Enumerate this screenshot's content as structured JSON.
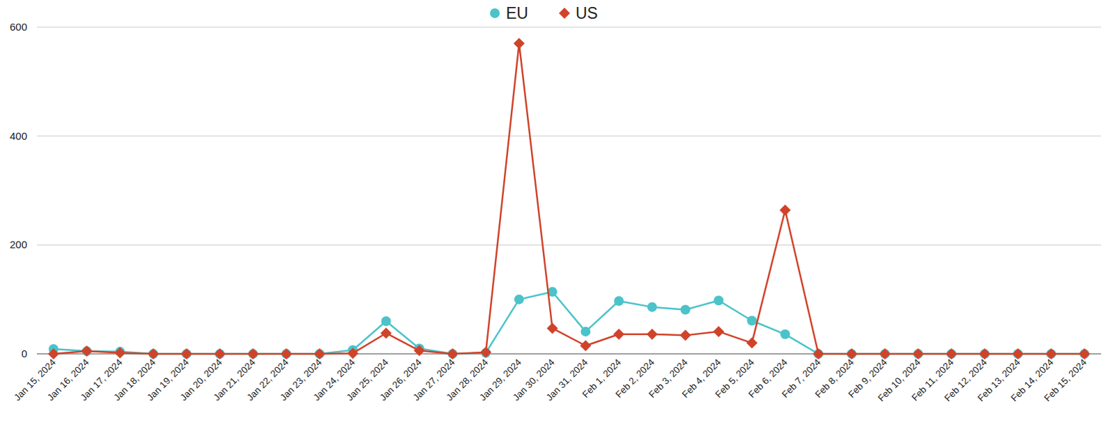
{
  "chart_data": {
    "type": "line",
    "categories": [
      "Jan 15, 2024",
      "Jan 16, 2024",
      "Jan 17, 2024",
      "Jan 18, 2024",
      "Jan 19, 2024",
      "Jan 20, 2024",
      "Jan 21, 2024",
      "Jan 22, 2024",
      "Jan 23, 2024",
      "Jan 24, 2024",
      "Jan 25, 2024",
      "Jan 26, 2024",
      "Jan 27, 2024",
      "Jan 28, 2024",
      "Jan 29, 2024",
      "Jan 30, 2024",
      "Jan 31, 2024",
      "Feb 1, 2024",
      "Feb 2, 2024",
      "Feb 3, 2024",
      "Feb 4, 2024",
      "Feb 5, 2024",
      "Feb 6, 2024",
      "Feb 7, 2024",
      "Feb 8, 2024",
      "Feb 9, 2024",
      "Feb 10, 2024",
      "Feb 11, 2024",
      "Feb 12, 2024",
      "Feb 13, 2024",
      "Feb 14, 2024",
      "Feb 15, 2024"
    ],
    "series": [
      {
        "name": "EU",
        "color": "#4bc3c9",
        "marker": "circle",
        "values": [
          9,
          5,
          4,
          0,
          0,
          0,
          0,
          0,
          0,
          7,
          60,
          10,
          0,
          2,
          100,
          114,
          41,
          97,
          86,
          81,
          98,
          61,
          36,
          0,
          0,
          0,
          0,
          0,
          0,
          0,
          0,
          0
        ]
      },
      {
        "name": "US",
        "color": "#d0432a",
        "marker": "diamond",
        "values": [
          0,
          5,
          2,
          0,
          0,
          0,
          0,
          0,
          0,
          1,
          38,
          6,
          0,
          3,
          570,
          47,
          15,
          36,
          36,
          34,
          41,
          20,
          264,
          0,
          0,
          0,
          0,
          0,
          0,
          0,
          0,
          0
        ]
      }
    ],
    "ylim": [
      0,
      600
    ],
    "yticks": [
      0,
      200,
      400,
      600
    ],
    "grid": true,
    "legend": "top"
  }
}
